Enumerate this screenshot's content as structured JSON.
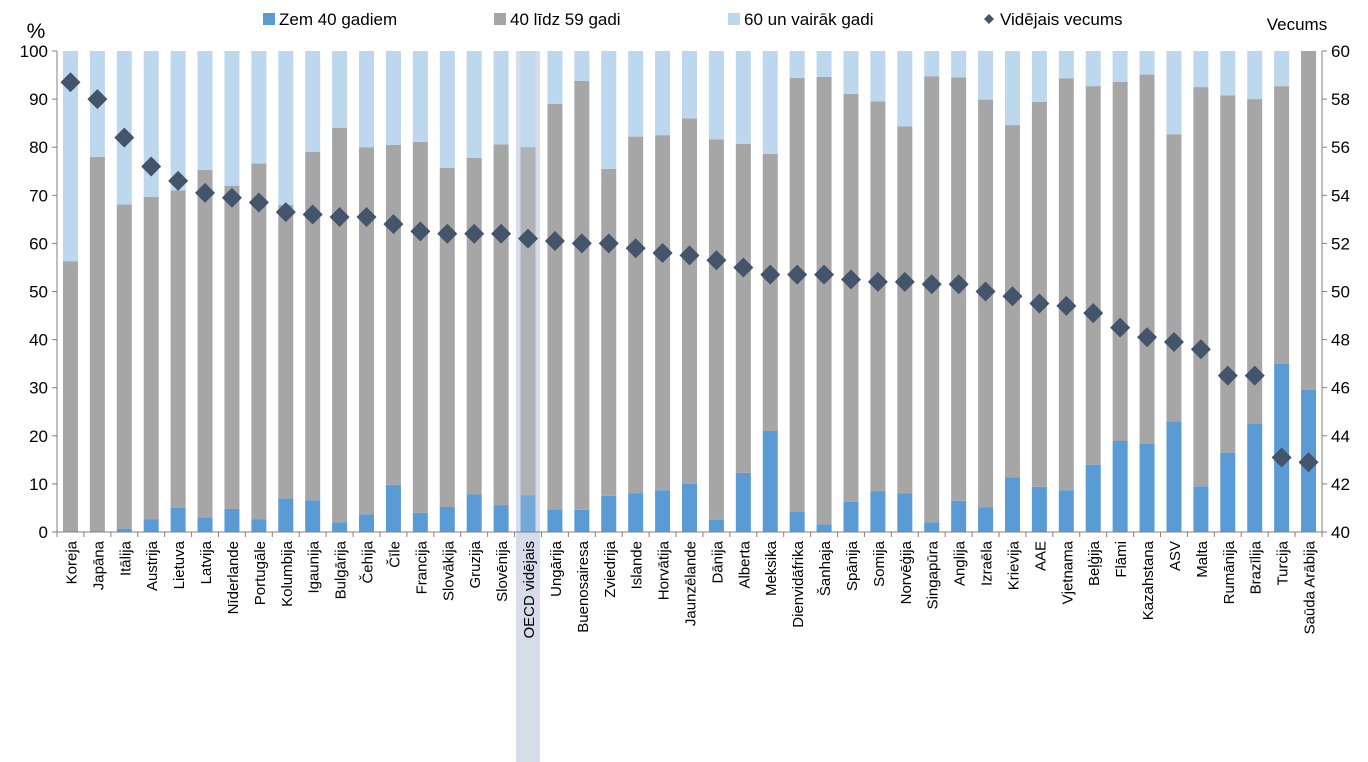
{
  "chart_data": {
    "type": "bar",
    "stacked": true,
    "y_left_label": "%",
    "y_right_label": "Vecums",
    "y_left_range": [
      0,
      100
    ],
    "y_left_ticks": [
      0,
      10,
      20,
      30,
      40,
      50,
      60,
      70,
      80,
      90,
      100
    ],
    "y_right_range": [
      40,
      60
    ],
    "y_right_ticks": [
      40,
      42,
      44,
      46,
      48,
      50,
      52,
      54,
      56,
      58,
      60
    ],
    "grid": false,
    "legend_position": "top",
    "highlighted_category": "OECD vidējais",
    "colors": {
      "under40": "#5b9bd5",
      "mid": "#a6a6a6",
      "over60": "#bdd7ee",
      "marker": "#44546a",
      "highlight": "#d6dcea"
    },
    "legend": [
      {
        "key": "under40",
        "label": "Zem 40 gadiem",
        "shape": "square"
      },
      {
        "key": "mid",
        "label": "40 līdz 59 gadi",
        "shape": "square"
      },
      {
        "key": "over60",
        "label": "60 un vairāk gadi",
        "shape": "square"
      },
      {
        "key": "marker",
        "label": "Vidējais vecums",
        "shape": "diamond"
      }
    ],
    "categories": [
      "Koreja",
      "Japāna",
      "Itālija",
      "Austrija",
      "Lietuva",
      "Latvija",
      "Nīderlande",
      "Portugāle",
      "Kolumbija",
      "Igaunija",
      "Bulgārija",
      "Čehija",
      "Čīle",
      "Francija",
      "Slovākija",
      "Gruzija",
      "Slovēnija",
      "OECD vidējais",
      "Ungārija",
      "Buenosairesa",
      "Zviedrija",
      "Islande",
      "Horvātija",
      "Jaunzēlande",
      "Dānija",
      "Alberta",
      "Meksika",
      "Dienvidāfrika",
      "Šanhaja",
      "Spānija",
      "Somija",
      "Norvēģija",
      "Singapūra",
      "Anglija",
      "Izraēla",
      "Krievija",
      "AAE",
      "Vjetnama",
      "Beļģija",
      "Flāmi",
      "Kazahstana",
      "ASV",
      "Malta",
      "Rumānija",
      "Brazīlija",
      "Turcija",
      "Saūda Arābija"
    ],
    "series": [
      {
        "key": "under40",
        "name": "Zem 40 gadiem",
        "axis": "left",
        "values": [
          0,
          0,
          0.7,
          2.6,
          5,
          3,
          4.8,
          2.6,
          7,
          6.6,
          2,
          3.7,
          9.8,
          4,
          5.2,
          7.8,
          5.6,
          7.6,
          4.7,
          4.6,
          7.5,
          8,
          8.7,
          10,
          2.5,
          12.3,
          21,
          4.3,
          1.6,
          6.3,
          8.5,
          8,
          2,
          6.5,
          5.1,
          11.4,
          9.4,
          8.7,
          14,
          19,
          18.3,
          23,
          9.5,
          16.5,
          22.6,
          35,
          29.6
        ]
      },
      {
        "key": "mid",
        "name": "40 līdz 59 gadi",
        "axis": "left",
        "values": [
          56.3,
          78,
          67.4,
          67.1,
          66,
          72.3,
          67.2,
          74,
          61,
          72.4,
          82,
          76.3,
          70.7,
          77.1,
          70.5,
          70,
          75,
          72.4,
          84.3,
          89.2,
          68,
          74.2,
          73.8,
          76,
          79.1,
          68.4,
          57.6,
          90.1,
          93,
          84.8,
          81,
          76.3,
          92.7,
          88,
          84.8,
          73.2,
          80,
          85.6,
          78.7,
          74.6,
          76.8,
          59.7,
          83,
          74.3,
          67.4,
          57.7,
          70.4
        ]
      },
      {
        "key": "over60",
        "name": "60 un vairāk gadi",
        "axis": "left",
        "values": [
          43.7,
          22,
          31.9,
          30.3,
          29,
          24.7,
          28,
          23.4,
          32,
          21,
          16,
          20,
          19.5,
          18.9,
          24.3,
          22.2,
          19.4,
          20,
          11,
          6.2,
          24.5,
          17.8,
          17.5,
          14,
          18.4,
          19.3,
          21.4,
          5.6,
          5.4,
          8.9,
          10.5,
          15.7,
          5.3,
          5.5,
          10.1,
          15.4,
          10.6,
          5.7,
          7.3,
          6.4,
          4.9,
          17.3,
          7.5,
          9.2,
          10,
          7.3,
          0
        ]
      },
      {
        "key": "marker",
        "name": "Vidējais vecums",
        "axis": "right",
        "type": "scatter",
        "values": [
          58.7,
          58,
          56.4,
          55.2,
          54.6,
          54.1,
          53.9,
          53.7,
          53.3,
          53.2,
          53.1,
          53.1,
          52.8,
          52.5,
          52.4,
          52.4,
          52.4,
          52.2,
          52.1,
          52,
          52,
          51.8,
          51.6,
          51.5,
          51.3,
          51,
          50.7,
          50.7,
          50.7,
          50.5,
          50.4,
          50.4,
          50.3,
          50.3,
          50,
          49.8,
          49.5,
          49.4,
          49.1,
          48.5,
          48.1,
          47.9,
          47.6,
          46.5,
          46.5,
          43.1,
          42.9
        ]
      }
    ]
  }
}
